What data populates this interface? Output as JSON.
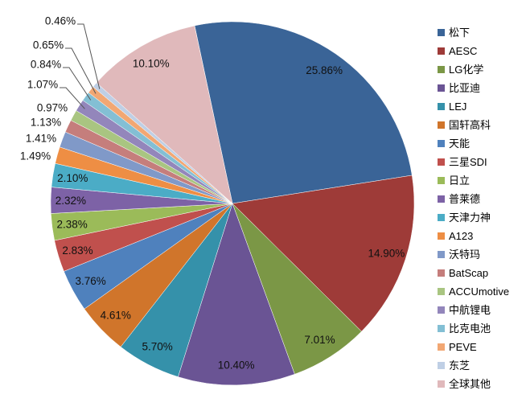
{
  "chart_data": {
    "type": "pie",
    "title": "",
    "legend_position": "right",
    "start_angle_deg": -12,
    "label_format": "percent",
    "series": [
      {
        "name": "松下",
        "value": 25.86,
        "label": "25.86%",
        "color": "#3A6497"
      },
      {
        "name": "AESC",
        "value": 14.9,
        "label": "14.90%",
        "color": "#9E3B38"
      },
      {
        "name": "LG化学",
        "value": 7.01,
        "label": "7.01%",
        "color": "#7B9746"
      },
      {
        "name": "比亚迪",
        "value": 10.4,
        "label": "10.40%",
        "color": "#6A5494"
      },
      {
        "name": "LEJ",
        "value": 5.7,
        "label": "5.70%",
        "color": "#3591AA"
      },
      {
        "name": "国轩高科",
        "value": 4.61,
        "label": "4.61%",
        "color": "#D0752B"
      },
      {
        "name": "天能",
        "value": 3.76,
        "label": "3.76%",
        "color": "#4F81BD"
      },
      {
        "name": "三星SDI",
        "value": 2.83,
        "label": "2.83%",
        "color": "#C0504D"
      },
      {
        "name": "日立",
        "value": 2.38,
        "label": "2.38%",
        "color": "#9BBB59"
      },
      {
        "name": "普莱德",
        "value": 2.32,
        "label": "2.32%",
        "color": "#7D62A6"
      },
      {
        "name": "天津力神",
        "value": 2.1,
        "label": "2.10%",
        "color": "#4BACC6"
      },
      {
        "name": "A123",
        "value": 1.49,
        "label": "1.49%",
        "color": "#EE8E44"
      },
      {
        "name": "沃特玛",
        "value": 1.41,
        "label": "1.41%",
        "color": "#8099C8"
      },
      {
        "name": "BatScap",
        "value": 1.13,
        "label": "1.13%",
        "color": "#C57E7C"
      },
      {
        "name": "ACCUmotive",
        "value": 0.97,
        "label": "0.97%",
        "color": "#A9C581"
      },
      {
        "name": "中航锂电",
        "value": 1.07,
        "label": "1.07%",
        "color": "#9386BB"
      },
      {
        "name": "比克电池",
        "value": 0.84,
        "label": "0.84%",
        "color": "#83BFD4"
      },
      {
        "name": "PEVE",
        "value": 0.65,
        "label": "0.65%",
        "color": "#F2A773"
      },
      {
        "name": "东芝",
        "value": 0.46,
        "label": "0.46%",
        "color": "#BFCFE5"
      },
      {
        "name": "全球其他",
        "value": 10.1,
        "label": "10.10%",
        "color": "#E0B9BB"
      }
    ]
  }
}
